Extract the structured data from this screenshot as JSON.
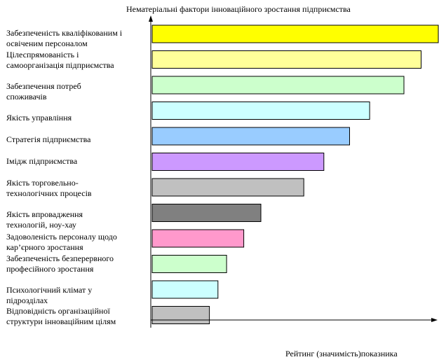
{
  "chart_data": {
    "type": "bar",
    "orientation": "horizontal",
    "title": "Нематеріальні фактори інноваційного зростання підприємства",
    "xlabel": "Рейтинг (значимість)показника",
    "ylabel": "",
    "xlim": [
      0,
      100
    ],
    "grid": false,
    "categories": [
      "Забезпеченість кваліфікованим і\nосвіченим персоналом",
      "Цілеспрямованість і\nсамоорганізація     підприємства",
      "Забезпечення потреб\nспоживачів",
      "Якість управління",
      " Стратегія підприємства",
      " Імідж підприємства",
      " Якість торговельно-\nтехнологічних процесів",
      " Якість впровадження\nтехнологій, ноу-хау",
      " Задоволеність персоналу щодо\nкар’єрного зростання",
      "Забезпеченість безперервного\nпрофесійного зростання",
      "Психологічний клімат у\nпідрозділах",
      "Відповідність організаційної\nструктури  інноваційним цілям"
    ],
    "values": [
      100,
      94,
      88,
      76,
      69,
      60,
      53,
      38,
      32,
      26,
      23,
      20
    ],
    "colors": [
      "#ffff00",
      "#ffff99",
      "#ccffcc",
      "#ccffff",
      "#99ccff",
      "#cc99ff",
      "#c0c0c0",
      "#808080",
      "#ff99cc",
      "#ccffcc",
      "#ccffff",
      "#c0c0c0"
    ]
  }
}
